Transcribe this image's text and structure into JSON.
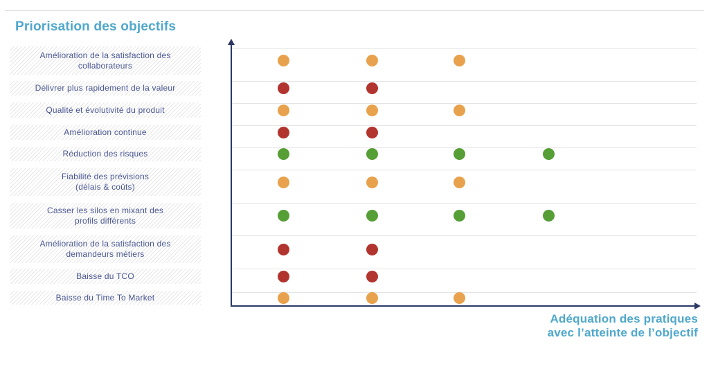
{
  "page": {
    "title": "Priorisation des objectifs"
  },
  "axis": {
    "x_label_line1": "Adéquation des pratiques",
    "x_label_line2": "avec l’atteinte de l’objectif"
  },
  "colors": {
    "title_blue": "#4fa8cc",
    "label_navy": "#4a5792",
    "axis_navy": "#2b3865",
    "gridline_gray": "#e4e4e4",
    "dot_orange": "#e8a24d",
    "dot_red": "#b2342e",
    "dot_green": "#569e36"
  },
  "chart_data": {
    "type": "scatter",
    "title": "Priorisation des objectifs",
    "xlabel": "Adéquation des pratiques avec l’atteinte de l’objectif",
    "ylabel": "",
    "x_range": [
      0,
      5
    ],
    "x_ticks_visible": false,
    "legend": "none",
    "grid": "horizontal",
    "rows": [
      {
        "label": "Amélioration de la satisfaction des collaborateurs",
        "lines": [
          "Amélioration de la satisfaction des",
          "collaborateurs"
        ],
        "color": "orange",
        "x_positions": [
          1,
          2,
          3
        ]
      },
      {
        "label": "Délivrer plus rapidement de la valeur",
        "lines": [
          "Délivrer plus rapidement de la valeur"
        ],
        "color": "red",
        "x_positions": [
          1,
          2
        ]
      },
      {
        "label": "Qualité et évolutivité du produit",
        "lines": [
          "Qualité et évolutivité du produit"
        ],
        "color": "orange",
        "x_positions": [
          1,
          2,
          3
        ]
      },
      {
        "label": "Amélioration continue",
        "lines": [
          "Amélioration continue"
        ],
        "color": "red",
        "x_positions": [
          1,
          2
        ]
      },
      {
        "label": "Réduction des risques",
        "lines": [
          "Réduction des risques"
        ],
        "color": "green",
        "x_positions": [
          1,
          2,
          3,
          4
        ]
      },
      {
        "label": "Fiabilité des prévisions (délais & coûts)",
        "lines": [
          "Fiabilité des prévisions",
          "(délais & coûts)"
        ],
        "color": "orange",
        "x_positions": [
          1,
          2,
          3
        ]
      },
      {
        "label": "Casser les silos en mixant des profils différents",
        "lines": [
          "Casser les silos en mixant des",
          "profils différents"
        ],
        "color": "green",
        "x_positions": [
          1,
          2,
          3,
          4
        ]
      },
      {
        "label": "Amélioration de la satisfaction des demandeurs métiers",
        "lines": [
          "Amélioration de la satisfaction des",
          "demandeurs métiers"
        ],
        "color": "red",
        "x_positions": [
          1,
          2
        ]
      },
      {
        "label": "Baisse du TCO",
        "lines": [
          "Baisse du TCO"
        ],
        "color": "red",
        "x_positions": [
          1,
          2
        ]
      },
      {
        "label": "Baisse du Time To Market",
        "lines": [
          "Baisse du Time To Market"
        ],
        "color": "orange",
        "x_positions": [
          1,
          2,
          3
        ]
      }
    ]
  }
}
